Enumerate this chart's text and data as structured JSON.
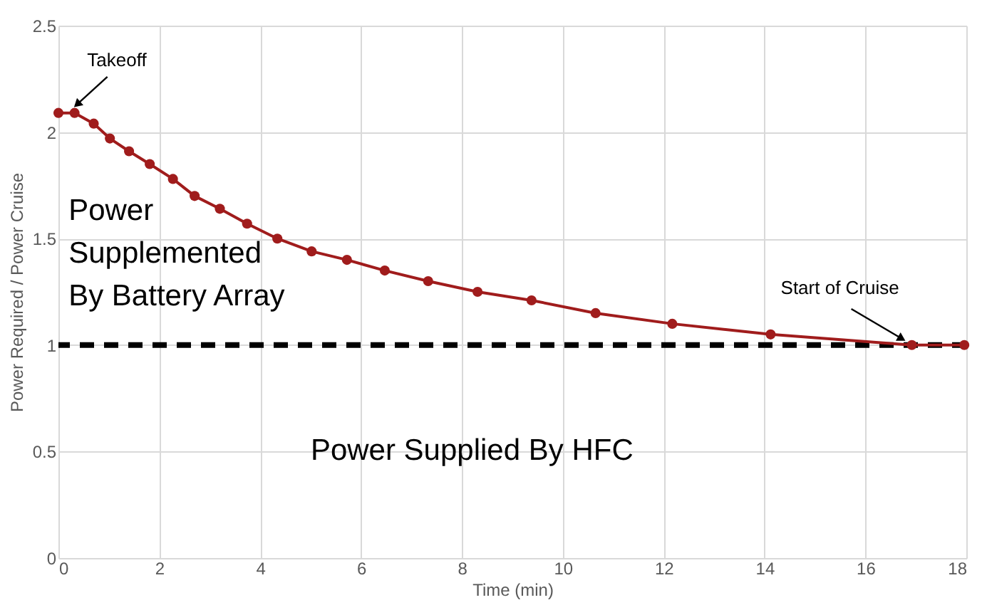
{
  "chart_data": {
    "type": "line",
    "xlabel": "Time (min)",
    "ylabel": "Power Required / Power Cruise",
    "x": [
      0,
      0.32,
      0.7,
      1.02,
      1.4,
      1.81,
      2.27,
      2.7,
      3.2,
      3.74,
      4.34,
      5.02,
      5.72,
      6.47,
      7.33,
      8.31,
      9.38,
      10.65,
      12.17,
      14.12,
      16.92,
      17.96
    ],
    "series": [
      {
        "color": "#a01c1c",
        "values": [
          2.09,
          2.09,
          2.04,
          1.97,
          1.91,
          1.85,
          1.78,
          1.7,
          1.64,
          1.57,
          1.5,
          1.44,
          1.4,
          1.35,
          1.3,
          1.25,
          1.21,
          1.15,
          1.1,
          1.05,
          1.0,
          1.0
        ]
      }
    ],
    "xlim": [
      0,
      18
    ],
    "xticks": [
      0,
      2,
      4,
      6,
      8,
      10,
      12,
      14,
      16,
      18
    ],
    "ylim": [
      0,
      2.5
    ],
    "yticks": [
      0,
      0.5,
      1,
      1.5,
      2,
      2.5
    ],
    "grid": true,
    "marker": "circle",
    "line_style": "solid",
    "ref_lines": [
      {
        "axis": "y",
        "value": 1,
        "color": "#000000",
        "line_style": "dashed"
      }
    ],
    "annotations": [
      {
        "text": "Takeoff",
        "x": 0.32,
        "y": 2.09
      },
      {
        "text": "Start of Cruise",
        "x": 16.92,
        "y": 1.0
      },
      "Power\nSupplemented\nBy Battery Array",
      "Power Supplied By HFC"
    ]
  }
}
